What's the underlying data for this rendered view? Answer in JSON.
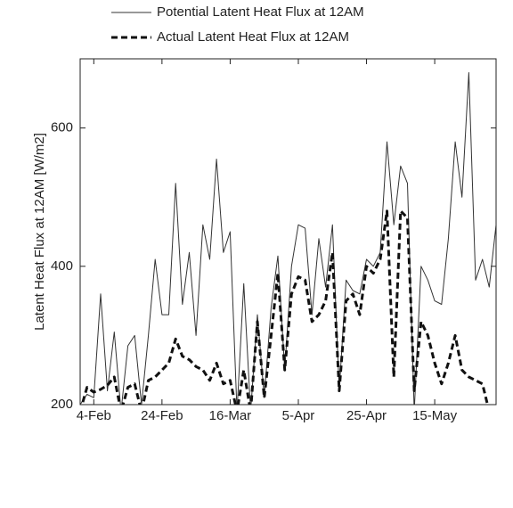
{
  "chart_data": {
    "type": "line",
    "ylabel": "Latent Heat Flux at 12AM [W/m2]",
    "x": [
      "31-Jan",
      "2-Feb",
      "4-Feb",
      "6-Feb",
      "8-Feb",
      "10-Feb",
      "12-Feb",
      "14-Feb",
      "16-Feb",
      "18-Feb",
      "20-Feb",
      "22-Feb",
      "24-Feb",
      "26-Feb",
      "28-Feb",
      "2-Mar",
      "4-Mar",
      "6-Mar",
      "8-Mar",
      "10-Mar",
      "12-Mar",
      "14-Mar",
      "16-Mar",
      "18-Mar",
      "20-Mar",
      "22-Mar",
      "24-Mar",
      "26-Mar",
      "28-Mar",
      "30-Mar",
      "1-Apr",
      "3-Apr",
      "5-Apr",
      "7-Apr",
      "9-Apr",
      "11-Apr",
      "13-Apr",
      "15-Apr",
      "17-Apr",
      "19-Apr",
      "21-Apr",
      "23-Apr",
      "25-Apr",
      "27-Apr",
      "29-Apr",
      "1-May",
      "3-May",
      "5-May",
      "7-May",
      "9-May",
      "11-May",
      "13-May",
      "15-May",
      "17-May",
      "19-May",
      "21-May",
      "23-May",
      "25-May",
      "27-May",
      "29-May",
      "31-May",
      "2-Jun"
    ],
    "series": [
      {
        "name": "Potential Latent Heat Flux at 12AM",
        "color": "#333333",
        "style": "solid",
        "values": [
          200,
          215,
          210,
          360,
          220,
          305,
          190,
          285,
          300,
          200,
          300,
          410,
          330,
          330,
          520,
          345,
          420,
          300,
          460,
          410,
          555,
          420,
          450,
          190,
          375,
          190,
          330,
          210,
          340,
          415,
          250,
          400,
          460,
          455,
          330,
          440,
          370,
          460,
          220,
          380,
          365,
          360,
          410,
          400,
          420,
          580,
          460,
          545,
          520,
          190,
          400,
          380,
          350,
          345,
          440,
          580,
          500,
          680,
          380,
          410,
          370,
          460
        ]
      },
      {
        "name": "Actual Latent Heat Flux at 12AM",
        "color": "#111111",
        "style": "dashed",
        "values": [
          190,
          225,
          218,
          222,
          228,
          240,
          190,
          225,
          230,
          190,
          235,
          240,
          250,
          260,
          295,
          270,
          265,
          255,
          250,
          235,
          260,
          230,
          235,
          190,
          250,
          190,
          320,
          210,
          300,
          390,
          250,
          360,
          385,
          380,
          320,
          330,
          350,
          420,
          220,
          350,
          360,
          330,
          400,
          390,
          410,
          480,
          240,
          480,
          470,
          220,
          320,
          300,
          260,
          230,
          260,
          300,
          250,
          240,
          235,
          230,
          190,
          190
        ]
      }
    ],
    "xlim": [
      "31-Jan",
      "2-Jun"
    ],
    "xticks": [
      "4-Feb",
      "24-Feb",
      "16-Mar",
      "5-Apr",
      "25-Apr",
      "15-May"
    ],
    "ylim": [
      200,
      700
    ],
    "yticks": [
      200,
      400,
      600
    ],
    "legend": "top"
  }
}
